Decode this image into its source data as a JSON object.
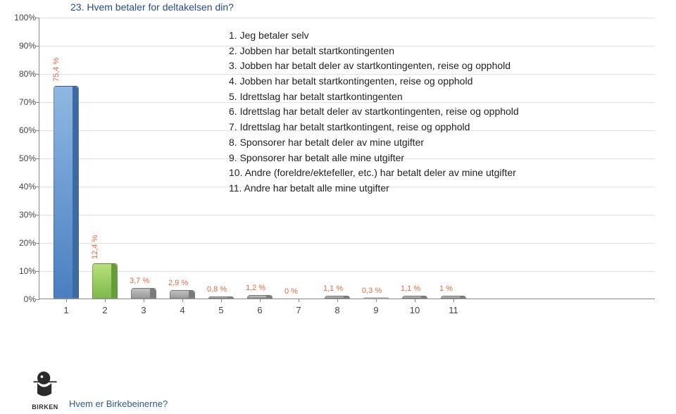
{
  "title": "23. Hvem betaler for deltakelsen din?",
  "chart": {
    "type": "bar",
    "ylim": [
      0,
      100
    ],
    "ytick_step": 10,
    "ytick_suffix": "%",
    "grid_color": "#e0e0e0",
    "axis_color": "#888888",
    "bars": [
      {
        "x": "1",
        "value": 75.4,
        "label": "75,4 %",
        "color1": "#8fb7e2",
        "color2": "#4a7fc1",
        "side": "#3d6aa3",
        "label_rotated": true
      },
      {
        "x": "2",
        "value": 12.4,
        "label": "12,4 %",
        "color1": "#b7e07c",
        "color2": "#7fb94c",
        "side": "#669c3a",
        "label_rotated": true
      },
      {
        "x": "3",
        "value": 3.7,
        "label": "3,7 %",
        "color1": "#c0c0c0",
        "color2": "#9a9a9a",
        "side": "#7a7a7a",
        "label_rotated": false
      },
      {
        "x": "4",
        "value": 2.9,
        "label": "2,9 %",
        "color1": "#c0c0c0",
        "color2": "#9a9a9a",
        "side": "#7a7a7a",
        "label_rotated": false
      },
      {
        "x": "5",
        "value": 0.8,
        "label": "0,8 %",
        "color1": "#c0c0c0",
        "color2": "#9a9a9a",
        "side": "#7a7a7a",
        "label_rotated": false
      },
      {
        "x": "6",
        "value": 1.2,
        "label": "1,2 %",
        "color1": "#c0c0c0",
        "color2": "#9a9a9a",
        "side": "#7a7a7a",
        "label_rotated": false
      },
      {
        "x": "7",
        "value": 0,
        "label": "0 %",
        "color1": "#c0c0c0",
        "color2": "#9a9a9a",
        "side": "#7a7a7a",
        "label_rotated": false
      },
      {
        "x": "8",
        "value": 1.1,
        "label": "1,1 %",
        "color1": "#c0c0c0",
        "color2": "#9a9a9a",
        "side": "#7a7a7a",
        "label_rotated": false
      },
      {
        "x": "9",
        "value": 0.3,
        "label": "0,3 %",
        "color1": "#c0c0c0",
        "color2": "#9a9a9a",
        "side": "#7a7a7a",
        "label_rotated": false
      },
      {
        "x": "10",
        "value": 1.1,
        "label": "1,1 %",
        "color1": "#c0c0c0",
        "color2": "#9a9a9a",
        "side": "#7a7a7a",
        "label_rotated": false
      },
      {
        "x": "11",
        "value": 1,
        "label": "1 %",
        "color1": "#c0c0c0",
        "color2": "#9a9a9a",
        "side": "#7a7a7a",
        "label_rotated": false
      }
    ]
  },
  "legend": [
    "1. Jeg betaler selv",
    "2. Jobben har betalt startkontingenten",
    "3. Jobben har betalt deler av startkontingenten, reise og opphold",
    "4. Jobben har betalt startkontingenten, reise og opphold",
    "5. Idrettslag har betalt startkontingenten",
    "6. Idrettslag har betalt deler av startkontingenten, reise og opphold",
    "7. Idrettslag har betalt startkontingent, reise og opphold",
    "8. Sponsorer har betalt deler av mine utgifter",
    "9. Sponsorer har betalt alle mine utgifter",
    "10. Andre (foreldre/ektefeller, etc.) har betalt deler av mine utgifter",
    "11. Andre har betalt alle mine utgifter"
  ],
  "footer": {
    "brand": "BIRKEN",
    "text": "Hvem er Birkebeinerne?"
  }
}
